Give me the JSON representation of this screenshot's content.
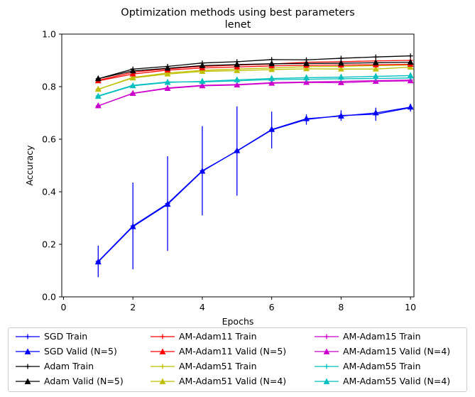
{
  "chart_data": {
    "type": "line",
    "title": "Optimization methods using best parameters",
    "subtitle": "lenet",
    "xlabel": "Epochs",
    "ylabel": "Accuracy",
    "xlim": [
      -0.05,
      10.1
    ],
    "ylim": [
      0.0,
      1.0
    ],
    "xticks": [
      "0",
      "2",
      "4",
      "6",
      "8",
      "10"
    ],
    "yticks": [
      "0.0",
      "0.2",
      "0.4",
      "0.6",
      "0.8",
      "1.0"
    ],
    "grid": false,
    "legend_location": "below plot, 3 columns",
    "x": [
      1,
      2,
      3,
      4,
      5,
      6,
      7,
      8,
      9,
      10
    ],
    "series": [
      {
        "name": "SGD Train",
        "color": "#0000ff",
        "marker": "plus",
        "values": [
          0.135,
          0.27,
          0.355,
          0.48,
          0.555,
          0.635,
          0.675,
          0.69,
          0.695,
          0.72
        ],
        "errors": [
          0.06,
          0.165,
          0.18,
          0.17,
          0.17,
          0.07,
          0.02,
          0.02,
          0.025,
          0.015
        ]
      },
      {
        "name": "SGD Valid (N=5)",
        "color": "#0000ff",
        "marker": "triangle",
        "values": [
          0.133,
          0.267,
          0.352,
          0.478,
          0.556,
          0.637,
          0.678,
          0.688,
          0.7,
          0.722
        ],
        "errors": [
          0.0,
          0.0,
          0.0,
          0.0,
          0.0,
          0.0,
          0.0,
          0.0,
          0.0,
          0.0
        ]
      },
      {
        "name": "Adam Train",
        "color": "#000000",
        "marker": "plus",
        "values": [
          0.83,
          0.867,
          0.877,
          0.89,
          0.895,
          0.903,
          0.902,
          0.908,
          0.913,
          0.917
        ],
        "errors": [
          0.0,
          0.0,
          0.0,
          0.0,
          0.0,
          0.0,
          0.0,
          0.0,
          0.0,
          0.0
        ]
      },
      {
        "name": "Adam Valid (N=5)",
        "color": "#000000",
        "marker": "triangle",
        "values": [
          0.83,
          0.86,
          0.87,
          0.88,
          0.884,
          0.887,
          0.888,
          0.889,
          0.891,
          0.893
        ],
        "errors": [
          0.0,
          0.0,
          0.0,
          0.0,
          0.0,
          0.0,
          0.0,
          0.0,
          0.0,
          0.0
        ]
      },
      {
        "name": "AM-Adam11 Train",
        "color": "#ff0000",
        "marker": "plus",
        "values": [
          0.824,
          0.855,
          0.868,
          0.877,
          0.882,
          0.886,
          0.893,
          0.895,
          0.898,
          0.9
        ],
        "errors": [
          0.0,
          0.0,
          0.0,
          0.0,
          0.0,
          0.0,
          0.0,
          0.0,
          0.0,
          0.0
        ]
      },
      {
        "name": "AM-Adam11 Valid (N=5)",
        "color": "#ff0000",
        "marker": "triangle",
        "values": [
          0.822,
          0.848,
          0.863,
          0.871,
          0.875,
          0.879,
          0.881,
          0.882,
          0.883,
          0.885
        ],
        "errors": [
          0.0,
          0.0,
          0.0,
          0.0,
          0.0,
          0.0,
          0.0,
          0.0,
          0.0,
          0.0
        ]
      },
      {
        "name": "AM-Adam15 Train",
        "color": "#cc00cc",
        "marker": "plus",
        "values": [
          0.727,
          0.775,
          0.795,
          0.805,
          0.808,
          0.815,
          0.818,
          0.82,
          0.823,
          0.825
        ],
        "errors": [
          0.0,
          0.0,
          0.0,
          0.0,
          0.0,
          0.0,
          0.0,
          0.0,
          0.0,
          0.0
        ]
      },
      {
        "name": "AM-Adam15 Valid (N=4)",
        "color": "#cc00cc",
        "marker": "triangle",
        "values": [
          0.727,
          0.774,
          0.793,
          0.803,
          0.806,
          0.813,
          0.816,
          0.815,
          0.82,
          0.822
        ],
        "errors": [
          0.0,
          0.0,
          0.0,
          0.0,
          0.0,
          0.0,
          0.0,
          0.0,
          0.0,
          0.0
        ]
      },
      {
        "name": "AM-Adam51 Train",
        "color": "#bfbf00",
        "marker": "plus",
        "values": [
          0.79,
          0.835,
          0.852,
          0.862,
          0.867,
          0.871,
          0.876,
          0.877,
          0.88,
          0.882
        ],
        "errors": [
          0.0,
          0.0,
          0.0,
          0.0,
          0.0,
          0.0,
          0.0,
          0.0,
          0.0,
          0.0
        ]
      },
      {
        "name": "AM-Adam51 Valid (N=4)",
        "color": "#bfbf00",
        "marker": "triangle",
        "values": [
          0.79,
          0.833,
          0.848,
          0.858,
          0.861,
          0.865,
          0.868,
          0.867,
          0.867,
          0.874
        ],
        "errors": [
          0.0,
          0.0,
          0.0,
          0.0,
          0.0,
          0.0,
          0.0,
          0.0,
          0.0,
          0.0
        ]
      },
      {
        "name": "AM-Adam55 Train",
        "color": "#00bfbf",
        "marker": "plus",
        "values": [
          0.765,
          0.805,
          0.818,
          0.818,
          0.822,
          0.827,
          0.828,
          0.83,
          0.831,
          0.833
        ],
        "errors": [
          0.0,
          0.0,
          0.0,
          0.0,
          0.0,
          0.0,
          0.0,
          0.0,
          0.0,
          0.0
        ]
      },
      {
        "name": "AM-Adam55 Valid (N=4)",
        "color": "#00bfbf",
        "marker": "triangle",
        "values": [
          0.763,
          0.803,
          0.816,
          0.82,
          0.826,
          0.831,
          0.834,
          0.836,
          0.839,
          0.842
        ],
        "errors": [
          0.0,
          0.0,
          0.0,
          0.0,
          0.0,
          0.0,
          0.0,
          0.0,
          0.0,
          0.0
        ]
      }
    ],
    "legend_order": [
      0,
      4,
      6,
      1,
      5,
      7,
      2,
      8,
      10,
      3,
      9,
      11
    ]
  }
}
